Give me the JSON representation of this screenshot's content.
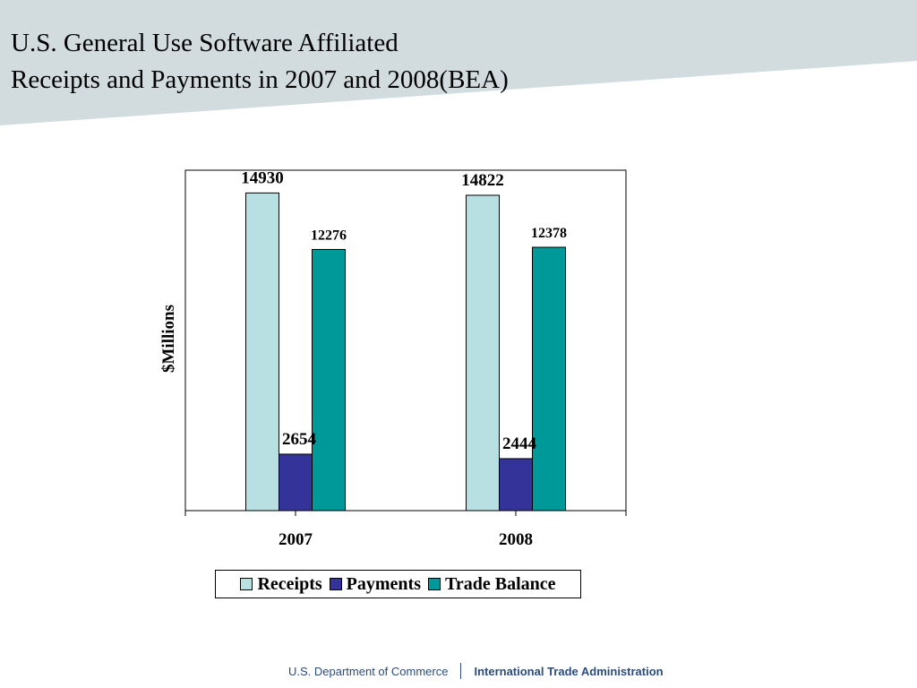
{
  "slide": {
    "title_line1": "U.S. General Use Software Affiliated",
    "title_line2": "Receipts and Payments in 2007 and 2008(BEA)"
  },
  "chart_data": {
    "type": "bar",
    "categories": [
      "2007",
      "2008"
    ],
    "series": [
      {
        "name": "Receipts",
        "values": [
          14930,
          14822
        ],
        "color": "#b8e0e2"
      },
      {
        "name": "Payments",
        "values": [
          2654,
          2444
        ],
        "color": "#333399"
      },
      {
        "name": "Trade Balance",
        "values": [
          12276,
          12378
        ],
        "color": "#009999"
      }
    ],
    "ylabel": "$Millions",
    "ylim": [
      0,
      16000
    ],
    "grid": false,
    "legend": "bottom"
  },
  "footer": {
    "left": "U.S. Department of Commerce",
    "right": "International Trade Administration"
  },
  "colors": {
    "header_band": "#d2dcdf",
    "footer_text": "#2c4c7a"
  }
}
